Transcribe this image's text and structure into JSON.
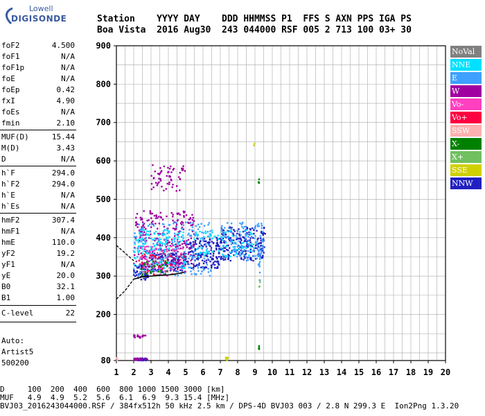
{
  "logo": {
    "brand_top": "Lowell",
    "brand_main": "DIGISONDE"
  },
  "header": {
    "line1": "Station    YYYY DAY    DDD HHMMSS P1  FFS S AXN PPS IGA PS",
    "line2": "Boa Vista  2016 Aug30  243 044000 RSF 005 2 713 100 03+ 30"
  },
  "params": [
    {
      "name": "foF2",
      "value": "4.500"
    },
    {
      "name": "foF1",
      "value": "N/A"
    },
    {
      "name": "foF1p",
      "value": "N/A"
    },
    {
      "name": "foE",
      "value": "N/A"
    },
    {
      "name": "foEp",
      "value": "0.42"
    },
    {
      "name": "fxI",
      "value": "4.90"
    },
    {
      "name": "foEs",
      "value": "N/A"
    },
    {
      "name": "fmin",
      "value": "2.10"
    },
    {
      "name": "MUF(D)",
      "value": "15.44"
    },
    {
      "name": "M(D)",
      "value": "3.43"
    },
    {
      "name": "D",
      "value": "N/A"
    },
    {
      "name": "h`F",
      "value": "294.0"
    },
    {
      "name": "h`F2",
      "value": "294.0"
    },
    {
      "name": "h`E",
      "value": "N/A"
    },
    {
      "name": "h`Es",
      "value": "N/A"
    },
    {
      "name": "hmF2",
      "value": "307.4"
    },
    {
      "name": "hmF1",
      "value": "N/A"
    },
    {
      "name": "hmE",
      "value": "110.0"
    },
    {
      "name": "yF2",
      "value": "19.2"
    },
    {
      "name": "yF1",
      "value": "N/A"
    },
    {
      "name": "yE",
      "value": "20.0"
    },
    {
      "name": "B0",
      "value": "32.1"
    },
    {
      "name": "B1",
      "value": "1.00"
    },
    {
      "name": "C-level",
      "value": "22"
    }
  ],
  "autoscale": {
    "line1": "Auto:",
    "line2": "Artist5",
    "line3": "500200"
  },
  "footer": {
    "line1": "D     100  200  400  600  800 1000 1500 3000 [km]",
    "line2": "MUF   4.9  4.9  5.2  5.6  6.1  6.9  9.3 15.4 [MHz]",
    "line3": "BVJ03_2016243044000.RSF / 384fx512h 50 kHz 2.5 km / DPS-4D BVJ03 003 / 2.8 N 299.3 E  Ion2Png 1.3.20"
  },
  "legend": [
    {
      "label": "NoVal",
      "color": "#808080"
    },
    {
      "label": "NNE",
      "color": "#00e0ff"
    },
    {
      "label": "E",
      "color": "#3fa0ff"
    },
    {
      "label": "W",
      "color": "#a000a0"
    },
    {
      "label": "Vo-",
      "color": "#ff40c0"
    },
    {
      "label": "Vo+",
      "color": "#ff0040"
    },
    {
      "label": "SSW",
      "color": "#ffb0b0"
    },
    {
      "label": "X-",
      "color": "#008000"
    },
    {
      "label": "X+",
      "color": "#70c060"
    },
    {
      "label": "SSE",
      "color": "#d0d000"
    },
    {
      "label": "NNW",
      "color": "#2020c0"
    }
  ],
  "chart_data": {
    "type": "scatter",
    "title": "",
    "xlabel": "",
    "ylabel": "",
    "xlim": [
      1,
      20
    ],
    "ylim": [
      80,
      900
    ],
    "x_ticks": [
      "1",
      "2",
      "3",
      "4",
      "5",
      "6",
      "7",
      "8",
      "9",
      "10",
      "11",
      "12",
      "13",
      "14",
      "15",
      "16",
      "17",
      "18",
      "19",
      "20"
    ],
    "y_ticks": [
      "80",
      "200",
      "300",
      "400",
      "500",
      "600",
      "700",
      "800",
      "900"
    ],
    "grid": true,
    "legend_position": "right",
    "series": [
      {
        "name": "NNW",
        "color": "#2020c0",
        "clusters": [
          {
            "x": [
              2.0,
              3.0
            ],
            "y": [
              290,
              330
            ],
            "n": 60
          },
          {
            "x": [
              3.0,
              5.0
            ],
            "y": [
              310,
              360
            ],
            "n": 140
          },
          {
            "x": [
              5.0,
              7.0
            ],
            "y": [
              320,
              400
            ],
            "n": 160
          },
          {
            "x": [
              7.0,
              9.6
            ],
            "y": [
              340,
              430
            ],
            "n": 220
          },
          {
            "x": [
              2.0,
              2.8
            ],
            "y": [
              80,
              86
            ],
            "n": 30
          }
        ]
      },
      {
        "name": "W",
        "color": "#a000a0",
        "clusters": [
          {
            "x": [
              2.0,
              5.5
            ],
            "y": [
              330,
              470
            ],
            "n": 260
          },
          {
            "x": [
              3.0,
              5.0
            ],
            "y": [
              520,
              590
            ],
            "n": 60
          },
          {
            "x": [
              2.0,
              2.7
            ],
            "y": [
              139,
              147
            ],
            "n": 20
          },
          {
            "x": [
              2.0,
              2.8
            ],
            "y": [
              80,
              86
            ],
            "n": 20
          }
        ]
      },
      {
        "name": "E",
        "color": "#3fa0ff",
        "clusters": [
          {
            "x": [
              2.0,
              6.5
            ],
            "y": [
              300,
              440
            ],
            "n": 220
          },
          {
            "x": [
              7.0,
              9.5
            ],
            "y": [
              340,
              440
            ],
            "n": 120
          },
          {
            "x": [
              9.2,
              9.3
            ],
            "y": [
              280,
              380
            ],
            "n": 14
          }
        ]
      },
      {
        "name": "NNE",
        "color": "#00e0ff",
        "clusters": [
          {
            "x": [
              2.0,
              5.0
            ],
            "y": [
              320,
              420
            ],
            "n": 140
          },
          {
            "x": [
              5.5,
              9.0
            ],
            "y": [
              350,
              420
            ],
            "n": 90
          }
        ]
      },
      {
        "name": "Vo-",
        "color": "#ff40c0",
        "clusters": [
          {
            "x": [
              2.3,
              5.0
            ],
            "y": [
              300,
              380
            ],
            "n": 70
          }
        ]
      },
      {
        "name": "Vo+",
        "color": "#ff0040",
        "clusters": [
          {
            "x": [
              2.3,
              5.0
            ],
            "y": [
              300,
              360
            ],
            "n": 40
          }
        ]
      },
      {
        "name": "X-",
        "color": "#008000",
        "clusters": [
          {
            "x": [
              2.3,
              4.0
            ],
            "y": [
              300,
              340
            ],
            "n": 30
          },
          {
            "x": [
              9.2,
              9.25
            ],
            "y": [
              540,
              555
            ],
            "n": 4
          },
          {
            "x": [
              9.2,
              9.25
            ],
            "y": [
              108,
              122
            ],
            "n": 4
          }
        ]
      },
      {
        "name": "X+",
        "color": "#70c060",
        "clusters": [
          {
            "x": [
              9.2,
              9.3
            ],
            "y": [
              270,
              290
            ],
            "n": 4
          }
        ]
      },
      {
        "name": "SSE",
        "color": "#d0d000",
        "clusters": [
          {
            "x": [
              7.3,
              7.45
            ],
            "y": [
              80,
              88
            ],
            "n": 6
          },
          {
            "x": [
              8.9,
              9.0
            ],
            "y": [
              640,
              645
            ],
            "n": 2
          }
        ]
      },
      {
        "name": "SSW",
        "color": "#ffb0b0",
        "clusters": [
          {
            "x": [
              1.0,
              1.1
            ],
            "y": [
              80,
              88
            ],
            "n": 4
          }
        ]
      }
    ],
    "profile_curve": {
      "x": [
        1.0,
        1.5,
        2.0,
        2.5,
        3.0,
        3.5,
        4.0,
        4.5,
        4.9
      ],
      "y": [
        240,
        262,
        292,
        298,
        300,
        302,
        303,
        306,
        310
      ]
    },
    "profile_upper": {
      "x": [
        1.0,
        1.5,
        2.0
      ],
      "y": [
        380,
        360,
        340
      ]
    }
  }
}
